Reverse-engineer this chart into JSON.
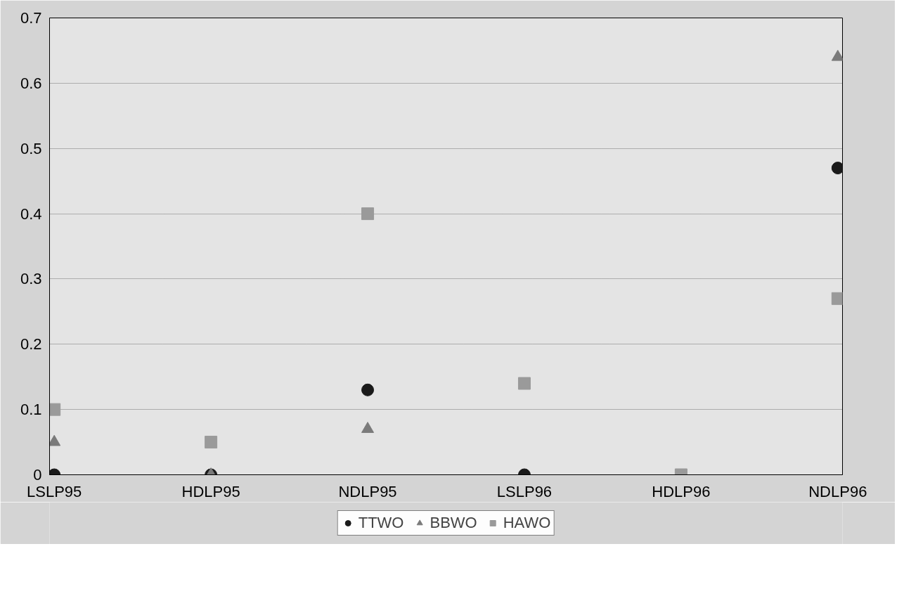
{
  "chart_data": {
    "type": "scatter",
    "categories": [
      "LSLP95",
      "HDLP95",
      "NDLP95",
      "LSLP96",
      "HDLP96",
      "NDLP96"
    ],
    "series": [
      {
        "name": "TTWO",
        "color": "#1a1a1a",
        "marker": "circle",
        "values": [
          0,
          0,
          0.13,
          0,
          null,
          0.47
        ]
      },
      {
        "name": "BBWO",
        "color": "#7a7a7a",
        "marker": "triangle",
        "values": [
          0.05,
          0,
          0.07,
          null,
          null,
          0.64
        ]
      },
      {
        "name": "HAWO",
        "color": "#9a9a9a",
        "marker": "square",
        "values": [
          0.1,
          0.05,
          0.4,
          0.14,
          0,
          0.27
        ]
      }
    ],
    "ylim": [
      0,
      0.7
    ],
    "yticks": [
      0,
      0.1,
      0.2,
      0.3,
      0.4,
      0.5,
      0.6,
      0.7
    ],
    "grid": "y",
    "legend": "bottom"
  }
}
